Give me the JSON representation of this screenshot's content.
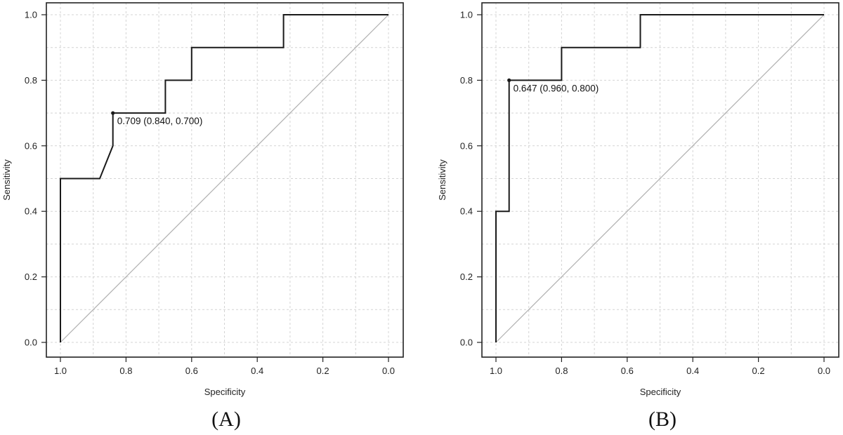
{
  "chart_data": [
    {
      "type": "line",
      "caption": "(A)",
      "xlabel": "Specificity",
      "ylabel": "Sensitivity",
      "xlim": [
        1.0,
        0.0
      ],
      "ylim": [
        0.0,
        1.0
      ],
      "x_reversed": true,
      "grid": true,
      "xticks": [
        "1.0",
        "0.8",
        "0.6",
        "0.4",
        "0.2",
        "0.0"
      ],
      "yticks": [
        "0.0",
        "0.2",
        "0.4",
        "0.6",
        "0.8",
        "1.0"
      ],
      "series": [
        {
          "points": [
            {
              "x": 1.0,
              "y": 0.0
            },
            {
              "x": 1.0,
              "y": 0.5
            },
            {
              "x": 0.88,
              "y": 0.5
            },
            {
              "x": 0.84,
              "y": 0.6
            },
            {
              "x": 0.84,
              "y": 0.7
            },
            {
              "x": 0.68,
              "y": 0.7
            },
            {
              "x": 0.68,
              "y": 0.8
            },
            {
              "x": 0.6,
              "y": 0.8
            },
            {
              "x": 0.6,
              "y": 0.9
            },
            {
              "x": 0.32,
              "y": 0.9
            },
            {
              "x": 0.32,
              "y": 1.0
            },
            {
              "x": 0.0,
              "y": 1.0
            }
          ]
        }
      ],
      "reference_line": [
        {
          "x": 1.0,
          "y": 0.0
        },
        {
          "x": 0.0,
          "y": 1.0
        }
      ],
      "annotation": {
        "x": 0.84,
        "y": 0.7,
        "text": "0.709 (0.840, 0.700)"
      }
    },
    {
      "type": "line",
      "caption": "(B)",
      "xlabel": "Specificity",
      "ylabel": "Sensitivity",
      "xlim": [
        1.0,
        0.0
      ],
      "ylim": [
        0.0,
        1.0
      ],
      "x_reversed": true,
      "grid": true,
      "xticks": [
        "1.0",
        "0.8",
        "0.6",
        "0.4",
        "0.2",
        "0.0"
      ],
      "yticks": [
        "0.0",
        "0.2",
        "0.4",
        "0.6",
        "0.8",
        "1.0"
      ],
      "series": [
        {
          "points": [
            {
              "x": 1.0,
              "y": 0.0
            },
            {
              "x": 1.0,
              "y": 0.4
            },
            {
              "x": 0.96,
              "y": 0.4
            },
            {
              "x": 0.96,
              "y": 0.8
            },
            {
              "x": 0.8,
              "y": 0.8
            },
            {
              "x": 0.8,
              "y": 0.9
            },
            {
              "x": 0.56,
              "y": 0.9
            },
            {
              "x": 0.56,
              "y": 1.0
            },
            {
              "x": 0.0,
              "y": 1.0
            }
          ]
        }
      ],
      "reference_line": [
        {
          "x": 1.0,
          "y": 0.0
        },
        {
          "x": 0.0,
          "y": 1.0
        }
      ],
      "annotation": {
        "x": 0.96,
        "y": 0.8,
        "text": "0.647 (0.960, 0.800)"
      }
    }
  ],
  "colors": {
    "curve": "#1a1a1a",
    "reference": "#b0b0b0",
    "grid": "#d4d4d4",
    "frame": "#222222"
  }
}
